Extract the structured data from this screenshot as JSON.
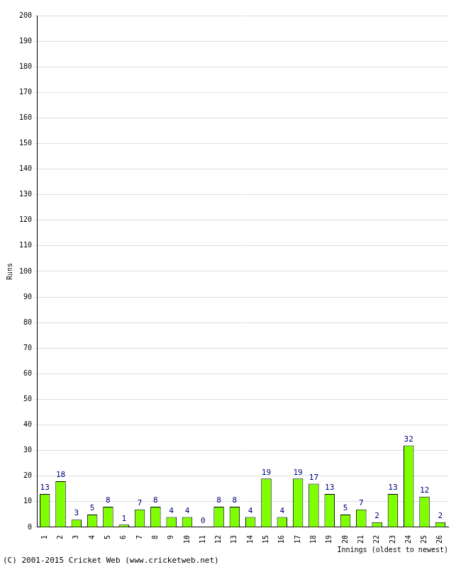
{
  "chart_data": {
    "type": "bar",
    "categories": [
      "1",
      "2",
      "3",
      "4",
      "5",
      "6",
      "7",
      "8",
      "9",
      "10",
      "11",
      "12",
      "13",
      "14",
      "15",
      "16",
      "17",
      "18",
      "19",
      "20",
      "21",
      "22",
      "23",
      "24",
      "25",
      "26"
    ],
    "values": [
      13,
      18,
      3,
      5,
      8,
      1,
      7,
      8,
      4,
      4,
      0,
      8,
      8,
      4,
      19,
      4,
      19,
      17,
      13,
      5,
      7,
      2,
      13,
      32,
      12,
      2
    ],
    "color": "#80ff00",
    "x_label": "Innings (oldest to newest)",
    "y_label": "Runs",
    "annotations": [
      "(C) 2001-2015 Cricket Web (www.cricketweb.net)"
    ],
    "ylim": [
      0,
      200
    ],
    "yticks": [
      0,
      10,
      20,
      30,
      40,
      50,
      60,
      70,
      80,
      90,
      100,
      110,
      120,
      130,
      140,
      150,
      160,
      170,
      180,
      190,
      200
    ],
    "grid": true,
    "data_labels": true
  }
}
